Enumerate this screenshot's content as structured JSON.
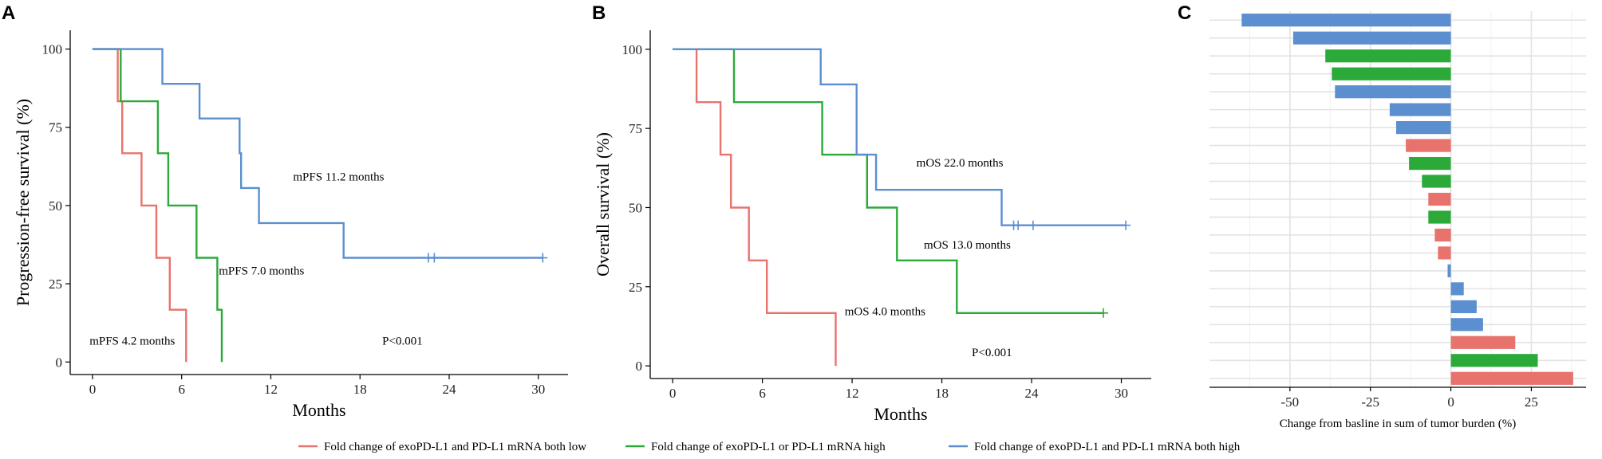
{
  "chart_data": [
    {
      "panel": "A",
      "type": "line",
      "subtype": "kaplan-meier",
      "xlabel": "Months",
      "ylabel": "Progression-free survival (%)",
      "xlim": [
        -1.5,
        32
      ],
      "ylim": [
        -4,
        106
      ],
      "xticks": [
        0,
        6,
        12,
        18,
        24,
        30
      ],
      "yticks": [
        0,
        25,
        50,
        75,
        100
      ],
      "series": [
        {
          "name": "Fold change of exoPD-L1 and PD-L1 mRNA both low",
          "color": "#E8736C",
          "steps": [
            [
              0,
              100
            ],
            [
              1.7,
              100
            ],
            [
              1.7,
              83.3
            ],
            [
              2.0,
              83.3
            ],
            [
              2.0,
              66.7
            ],
            [
              3.3,
              66.7
            ],
            [
              3.3,
              50
            ],
            [
              4.3,
              50
            ],
            [
              4.3,
              33.3
            ],
            [
              5.2,
              33.3
            ],
            [
              5.2,
              16.7
            ],
            [
              6.3,
              16.7
            ],
            [
              6.3,
              0
            ]
          ],
          "censored": []
        },
        {
          "name": "Fold change of exoPD-L1 or PD-L1 mRNA high",
          "color": "#2BAA3A",
          "steps": [
            [
              0,
              100
            ],
            [
              1.9,
              100
            ],
            [
              1.9,
              83.3
            ],
            [
              4.4,
              83.3
            ],
            [
              4.4,
              66.7
            ],
            [
              5.1,
              66.7
            ],
            [
              5.1,
              50
            ],
            [
              7.0,
              50
            ],
            [
              7.0,
              33.3
            ],
            [
              8.4,
              33.3
            ],
            [
              8.4,
              16.7
            ],
            [
              8.7,
              16.7
            ],
            [
              8.7,
              0
            ]
          ],
          "censored": []
        },
        {
          "name": "Fold change of exoPD-L1 and PD-L1 mRNA both high",
          "color": "#5B8FD0",
          "steps": [
            [
              0,
              100
            ],
            [
              4.7,
              100
            ],
            [
              4.7,
              88.9
            ],
            [
              7.2,
              88.9
            ],
            [
              7.2,
              77.8
            ],
            [
              9.9,
              77.8
            ],
            [
              9.9,
              66.7
            ],
            [
              10.0,
              66.7
            ],
            [
              10.0,
              55.6
            ],
            [
              11.2,
              55.6
            ],
            [
              11.2,
              44.4
            ],
            [
              16.9,
              44.4
            ],
            [
              16.9,
              33.3
            ],
            [
              30.3,
              33.3
            ]
          ],
          "censored": [
            [
              22.6,
              33.3
            ],
            [
              23.0,
              33.3
            ],
            [
              30.3,
              33.3
            ]
          ]
        }
      ],
      "annotations": [
        {
          "text": "mPFS 11.2 months",
          "x": 13.5,
          "y": 58
        },
        {
          "text": "mPFS 7.0 months",
          "x": 8.5,
          "y": 28
        },
        {
          "text": "mPFS 4.2 months",
          "x": -0.2,
          "y": 5.5
        },
        {
          "text": "P<0.001",
          "x": 19.5,
          "y": 5.5
        }
      ]
    },
    {
      "panel": "B",
      "type": "line",
      "subtype": "kaplan-meier",
      "xlabel": "Months",
      "ylabel": "Overall survival (%)",
      "xlim": [
        -1.5,
        32
      ],
      "ylim": [
        -4,
        106
      ],
      "xticks": [
        0,
        6,
        12,
        18,
        24,
        30
      ],
      "yticks": [
        0,
        25,
        50,
        75,
        100
      ],
      "series": [
        {
          "name": "Fold change of exoPD-L1 and PD-L1 mRNA both low",
          "color": "#E8736C",
          "steps": [
            [
              0,
              100
            ],
            [
              1.6,
              100
            ],
            [
              1.6,
              83.3
            ],
            [
              3.2,
              83.3
            ],
            [
              3.2,
              66.7
            ],
            [
              3.9,
              66.7
            ],
            [
              3.9,
              50
            ],
            [
              5.1,
              50
            ],
            [
              5.1,
              33.3
            ],
            [
              6.3,
              33.3
            ],
            [
              6.3,
              16.7
            ],
            [
              10.9,
              16.7
            ],
            [
              10.9,
              0
            ]
          ],
          "censored": []
        },
        {
          "name": "Fold change of exoPD-L1 or PD-L1 mRNA high",
          "color": "#2BAA3A",
          "steps": [
            [
              0,
              100
            ],
            [
              4.1,
              100
            ],
            [
              4.1,
              83.3
            ],
            [
              10.0,
              83.3
            ],
            [
              10.0,
              66.7
            ],
            [
              13.0,
              66.7
            ],
            [
              13.0,
              50
            ],
            [
              15.0,
              50
            ],
            [
              15.0,
              33.3
            ],
            [
              19.0,
              33.3
            ],
            [
              19.0,
              16.7
            ],
            [
              28.8,
              16.7
            ]
          ],
          "censored": [
            [
              28.8,
              16.7
            ]
          ]
        },
        {
          "name": "Fold change of exoPD-L1 and PD-L1 mRNA both high",
          "color": "#5B8FD0",
          "steps": [
            [
              0,
              100
            ],
            [
              9.9,
              100
            ],
            [
              9.9,
              88.9
            ],
            [
              12.3,
              88.9
            ],
            [
              12.3,
              66.7
            ],
            [
              13.6,
              66.7
            ],
            [
              13.6,
              55.6
            ],
            [
              22.0,
              55.6
            ],
            [
              22.0,
              44.4
            ],
            [
              30.3,
              44.4
            ]
          ],
          "censored": [
            [
              22.8,
              44.4
            ],
            [
              23.1,
              44.4
            ],
            [
              24.1,
              44.4
            ],
            [
              30.3,
              44.4
            ]
          ]
        }
      ],
      "annotations": [
        {
          "text": "mOS 22.0 months",
          "x": 16.3,
          "y": 63
        },
        {
          "text": "mOS 13.0 months",
          "x": 16.8,
          "y": 37
        },
        {
          "text": "mOS 4.0 months",
          "x": 11.5,
          "y": 16
        },
        {
          "text": "P<0.001",
          "x": 20.0,
          "y": 3
        }
      ]
    },
    {
      "panel": "C",
      "type": "bar",
      "orientation": "horizontal",
      "subtype": "waterfall",
      "xlabel": "Change from basline in sum of tumor burden (%)",
      "ylabel": "",
      "xlim": [
        -75,
        42
      ],
      "xticks": [
        -50,
        -25,
        0,
        25
      ],
      "values": [
        -65,
        -49,
        -39,
        -37,
        -36,
        -19,
        -17,
        -14,
        -13,
        -9,
        -7,
        -7,
        -5,
        -4,
        -1,
        4,
        8,
        10,
        20,
        27,
        38
      ],
      "groups": [
        "high",
        "high",
        "either",
        "either",
        "high",
        "high",
        "high",
        "low",
        "either",
        "either",
        "low",
        "either",
        "low",
        "low",
        "high",
        "high",
        "high",
        "high",
        "low",
        "either",
        "low"
      ],
      "group_colors": {
        "low": "#E8736C",
        "either": "#2BAA3A",
        "high": "#5B8FD0"
      }
    }
  ],
  "panel_letters": [
    "A",
    "B",
    "C"
  ],
  "legend": {
    "position": "bottom",
    "items": [
      {
        "label": "Fold change of exoPD-L1 and PD-L1 mRNA both low",
        "color": "#E8736C"
      },
      {
        "label": "Fold change of exoPD-L1 or PD-L1 mRNA high",
        "color": "#2BAA3A"
      },
      {
        "label": "Fold change of exoPD-L1 and PD-L1 mRNA both high",
        "color": "#5B8FD0"
      }
    ]
  }
}
